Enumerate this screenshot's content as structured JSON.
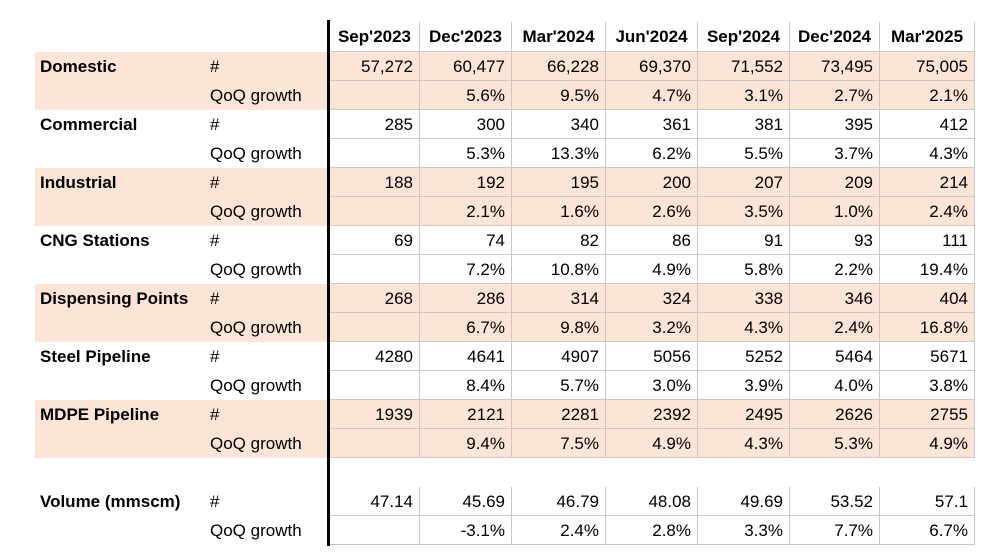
{
  "header": {
    "columns": [
      "Sep'2023",
      "Dec'2023",
      "Mar'2024",
      "Jun'2024",
      "Sep'2024",
      "Dec'2024",
      "Mar'2025"
    ]
  },
  "groups": [
    {
      "label": "Domestic",
      "unit": "#",
      "values": [
        "57,272",
        "60,477",
        "66,228",
        "69,370",
        "71,552",
        "73,495",
        "75,005"
      ],
      "growth_label": "QoQ growth",
      "growth": [
        "5.6%",
        "9.5%",
        "4.7%",
        "3.1%",
        "2.7%",
        "2.1%"
      ]
    },
    {
      "label": "Commercial",
      "unit": "#",
      "values": [
        "285",
        "300",
        "340",
        "361",
        "381",
        "395",
        "412"
      ],
      "growth_label": "QoQ growth",
      "growth": [
        "5.3%",
        "13.3%",
        "6.2%",
        "5.5%",
        "3.7%",
        "4.3%"
      ]
    },
    {
      "label": "Industrial",
      "unit": "#",
      "values": [
        "188",
        "192",
        "195",
        "200",
        "207",
        "209",
        "214"
      ],
      "growth_label": "QoQ growth",
      "growth": [
        "2.1%",
        "1.6%",
        "2.6%",
        "3.5%",
        "1.0%",
        "2.4%"
      ]
    },
    {
      "label": "CNG Stations",
      "unit": "#",
      "values": [
        "69",
        "74",
        "82",
        "86",
        "91",
        "93",
        "111"
      ],
      "growth_label": "QoQ growth",
      "growth": [
        "7.2%",
        "10.8%",
        "4.9%",
        "5.8%",
        "2.2%",
        "19.4%"
      ]
    },
    {
      "label": "Dispensing Points",
      "unit": "#",
      "values": [
        "268",
        "286",
        "314",
        "324",
        "338",
        "346",
        "404"
      ],
      "growth_label": "QoQ growth",
      "growth": [
        "6.7%",
        "9.8%",
        "3.2%",
        "4.3%",
        "2.4%",
        "16.8%"
      ]
    },
    {
      "label": "Steel Pipeline",
      "unit": "#",
      "values": [
        "4280",
        "4641",
        "4907",
        "5056",
        "5252",
        "5464",
        "5671"
      ],
      "growth_label": "QoQ growth",
      "growth": [
        "8.4%",
        "5.7%",
        "3.0%",
        "3.9%",
        "4.0%",
        "3.8%"
      ]
    },
    {
      "label": "MDPE Pipeline",
      "unit": "#",
      "values": [
        "1939",
        "2121",
        "2281",
        "2392",
        "2495",
        "2626",
        "2755"
      ],
      "growth_label": "QoQ growth",
      "growth": [
        "9.4%",
        "7.5%",
        "4.9%",
        "4.3%",
        "5.3%",
        "4.9%"
      ]
    },
    {
      "label": "Volume (mmscm)",
      "unit": "#",
      "values": [
        "47.14",
        "45.69",
        "46.79",
        "48.08",
        "49.69",
        "53.52",
        "57.1"
      ],
      "growth_label": "QoQ growth",
      "growth": [
        "-3.1%",
        "2.4%",
        "2.8%",
        "3.3%",
        "7.7%",
        "6.7%"
      ]
    }
  ]
}
